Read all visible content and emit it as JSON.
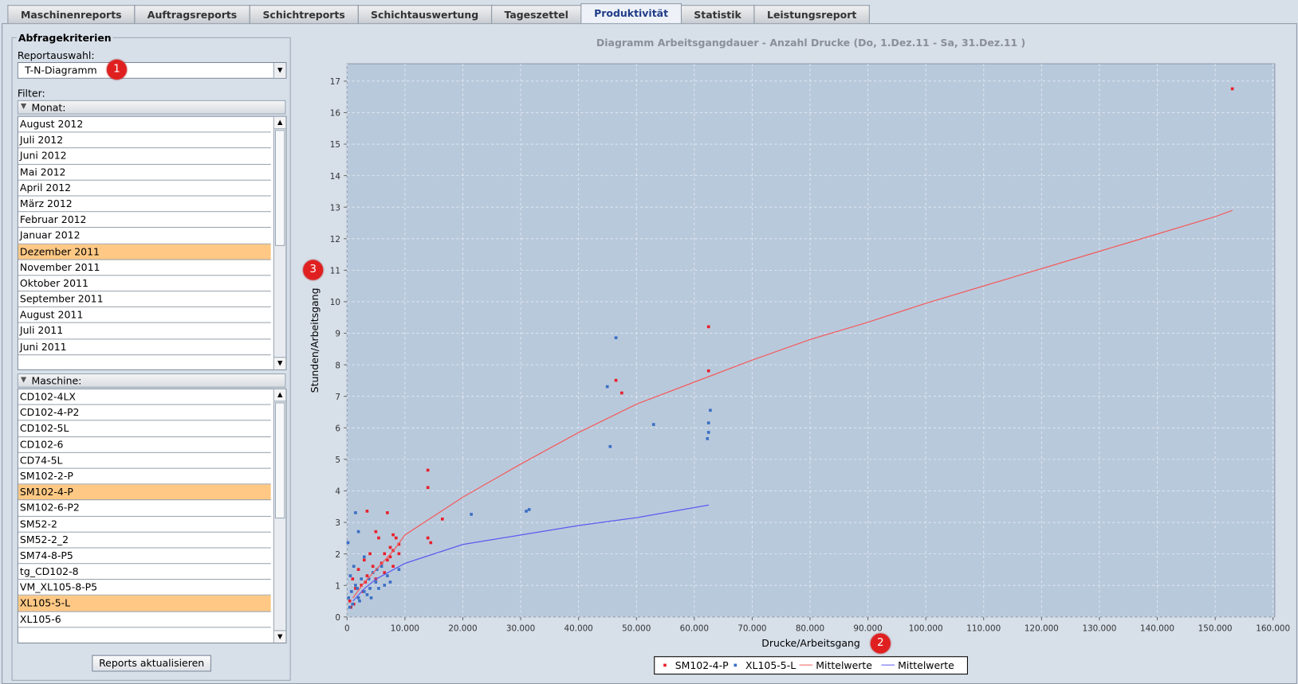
{
  "tabs": [
    "Maschinenreports",
    "Auftragsreports",
    "Schichtreports",
    "Schichtauswertung",
    "Tageszettel",
    "Produktivität",
    "Statistik",
    "Leistungsreport"
  ],
  "active_tab": 5,
  "panel": {
    "legend": "Abfragekriterien",
    "report_label": "Reportauswahl:",
    "report_value": "T-N-Diagramm",
    "filter_label": "Filter:",
    "month_header": "Monat:",
    "months": [
      {
        "label": "August 2012"
      },
      {
        "label": "Juli 2012"
      },
      {
        "label": "Juni 2012"
      },
      {
        "label": "Mai 2012"
      },
      {
        "label": "April 2012"
      },
      {
        "label": "März 2012"
      },
      {
        "label": "Februar 2012"
      },
      {
        "label": "Januar 2012"
      },
      {
        "label": "Dezember 2011",
        "selected": true
      },
      {
        "label": "November 2011"
      },
      {
        "label": "Oktober 2011"
      },
      {
        "label": "September 2011"
      },
      {
        "label": "August 2011"
      },
      {
        "label": "Juli 2011"
      },
      {
        "label": "Juni 2011"
      }
    ],
    "machine_header": "Maschine:",
    "machines": [
      {
        "label": "CD102-4LX"
      },
      {
        "label": "CD102-4-P2"
      },
      {
        "label": "CD102-5L"
      },
      {
        "label": "CD102-6"
      },
      {
        "label": "CD74-5L"
      },
      {
        "label": "SM102-2-P"
      },
      {
        "label": "SM102-4-P",
        "selected": true
      },
      {
        "label": "SM102-6-P2"
      },
      {
        "label": "SM52-2"
      },
      {
        "label": "SM52-2_2"
      },
      {
        "label": "SM74-8-P5"
      },
      {
        "label": "tg_CD102-8"
      },
      {
        "label": "VM_XL105-8-P5"
      },
      {
        "label": "XL105-5-L",
        "selected": true
      },
      {
        "label": "XL105-6"
      }
    ],
    "button": "Reports aktualisieren"
  },
  "annotations": [
    "1",
    "2",
    "3"
  ],
  "chart_data": {
    "type": "scatter",
    "title": "Diagramm Arbeitsgangdauer - Anzahl Drucke   (Do, 1.Dez.11  - Sa, 31.Dez.11 )",
    "x_label": "Drucke/Arbeitsgang",
    "y_label": "Stunden/Arbeitsgang",
    "grid": true,
    "legend": "bottom",
    "xlim": [
      0,
      160300
    ],
    "ylim": [
      0,
      17.55
    ],
    "xticks": [
      0,
      {
        "value": 10000,
        "label": "10.000"
      },
      {
        "value": 20000,
        "label": "20.000"
      },
      {
        "value": 30000,
        "label": "30.000"
      },
      {
        "value": 40000,
        "label": "40.000"
      },
      {
        "value": 50000,
        "label": "50.000"
      },
      {
        "value": 60000,
        "label": "60.000"
      },
      {
        "value": 70000,
        "label": "70.000"
      },
      {
        "value": 80000,
        "label": "80.000"
      },
      {
        "value": 90000,
        "label": "90.000"
      },
      {
        "value": 100000,
        "label": "100.000"
      },
      {
        "value": 110000,
        "label": "110.000"
      },
      {
        "value": 120000,
        "label": "120.000"
      },
      {
        "value": 130000,
        "label": "130.000"
      },
      {
        "value": 140000,
        "label": "140.000"
      },
      {
        "value": 150000,
        "label": "150.000"
      },
      {
        "value": 160000,
        "label": "160.000"
      }
    ],
    "yticks": [
      0,
      1,
      2,
      3,
      4,
      5,
      6,
      7,
      8,
      9,
      10,
      11,
      12,
      13,
      14,
      15,
      16,
      17
    ],
    "series": [
      {
        "name": "SM102-4-P",
        "color": "#e8202a",
        "style": "points",
        "x": [
          153000,
          62500,
          62500,
          46500,
          47500,
          14000,
          14000,
          16500,
          14000,
          14500,
          7000,
          3500,
          5000,
          8000,
          8500,
          9000,
          7500,
          6500,
          8000,
          5500,
          4000,
          3000,
          2000,
          1000,
          1500,
          500,
          2500,
          3500,
          6000,
          7000,
          8000,
          4500,
          9000,
          1200,
          700,
          2800,
          5000,
          6500,
          7500,
          3200
        ],
        "values": [
          16.75,
          9.2,
          7.8,
          7.5,
          7.1,
          4.65,
          4.1,
          3.1,
          2.5,
          2.35,
          3.3,
          3.35,
          2.7,
          2.6,
          2.5,
          2.3,
          2.2,
          2.0,
          2.1,
          2.5,
          2.0,
          1.8,
          1.5,
          1.2,
          0.9,
          0.5,
          1.0,
          1.3,
          1.7,
          1.8,
          1.6,
          1.6,
          2.0,
          0.4,
          0.3,
          0.8,
          1.2,
          1.4,
          1.9,
          1.1
        ]
      },
      {
        "name": "XL105-5-L",
        "color": "#3a6fc4",
        "style": "points",
        "x": [
          46500,
          45000,
          62800,
          62500,
          62500,
          62300,
          53000,
          45500,
          31500,
          31000,
          21500,
          1500,
          2000,
          200,
          9000,
          7000,
          6000,
          5000,
          4000,
          3000,
          2000,
          1000,
          500,
          1500,
          2500,
          3500,
          4500,
          5500,
          6500,
          7500,
          800,
          300,
          1200,
          2200,
          3800,
          600,
          1800,
          4200,
          5200,
          3000
        ],
        "values": [
          8.85,
          7.3,
          6.55,
          6.15,
          5.85,
          5.65,
          6.1,
          5.4,
          3.4,
          3.35,
          3.25,
          3.3,
          2.7,
          2.35,
          1.5,
          1.3,
          1.6,
          1.1,
          0.9,
          0.8,
          0.6,
          0.4,
          0.3,
          1.0,
          1.2,
          0.7,
          1.4,
          0.9,
          1.0,
          1.1,
          0.8,
          0.6,
          1.6,
          0.5,
          1.2,
          1.3,
          0.9,
          0.6,
          1.5,
          1.9
        ]
      },
      {
        "name": "Mittelwerte",
        "color": "#f25c5c",
        "style": "line",
        "x": [
          1000,
          3000,
          5000,
          8000,
          10000,
          15000,
          20000,
          30000,
          40000,
          50000,
          60000,
          70000,
          80000,
          90000,
          100000,
          110000,
          120000,
          130000,
          140000,
          150000,
          153000
        ],
        "values": [
          0.6,
          1.1,
          1.5,
          2.1,
          2.6,
          3.2,
          3.8,
          4.85,
          5.85,
          6.75,
          7.45,
          8.15,
          8.8,
          9.35,
          9.95,
          10.5,
          11.05,
          11.6,
          12.15,
          12.7,
          12.9
        ]
      },
      {
        "name": "Mittelwerte",
        "color": "#5b5bef",
        "style": "line",
        "x": [
          1000,
          3000,
          5000,
          10000,
          15000,
          20000,
          30000,
          40000,
          50000,
          62500
        ],
        "values": [
          0.5,
          0.9,
          1.2,
          1.7,
          2.0,
          2.3,
          2.6,
          2.9,
          3.15,
          3.55
        ]
      }
    ]
  }
}
